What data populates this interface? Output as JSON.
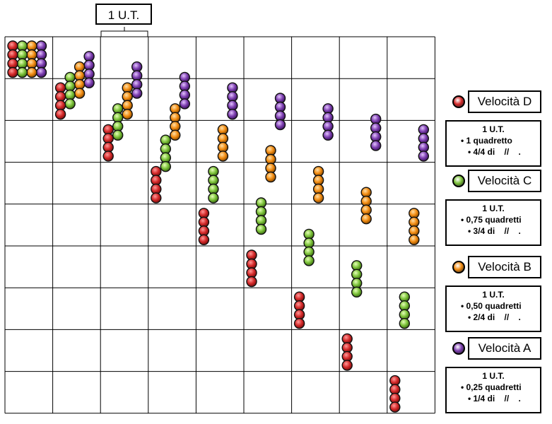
{
  "header": {
    "unit_label": "1 U.T."
  },
  "colors": {
    "D": "#d42a2a",
    "C": "#7cc23a",
    "B": "#f28c12",
    "A": "#7d3fb0"
  },
  "legend": [
    {
      "key": "D",
      "color": "#d42a2a",
      "title": "Velocità D",
      "unit": "1 U.T.",
      "line1": "• 1 quadretto",
      "line2": "• 4/4 di    //    ."
    },
    {
      "key": "C",
      "color": "#7cc23a",
      "title": "Velocità C",
      "unit": "1 U.T.",
      "line1": "• 0,75 quadretti",
      "line2": "• 3/4 di    //    ."
    },
    {
      "key": "B",
      "color": "#f28c12",
      "title": "Velocità B",
      "unit": "1 U.T.",
      "line1": "• 0,50 quadretti",
      "line2": "• 2/4 di    //    ."
    },
    {
      "key": "A",
      "color": "#7d3fb0",
      "title": "Velocità A",
      "unit": "1 U.T.",
      "line1": "• 0,25 quadretti",
      "line2": "• 1/4 di    //    ."
    }
  ],
  "grid": {
    "columns": 9,
    "rows": 9
  },
  "speeds": {
    "D": 1.0,
    "C": 0.75,
    "B": 0.5,
    "A": 0.25
  },
  "time_steps": 9
}
